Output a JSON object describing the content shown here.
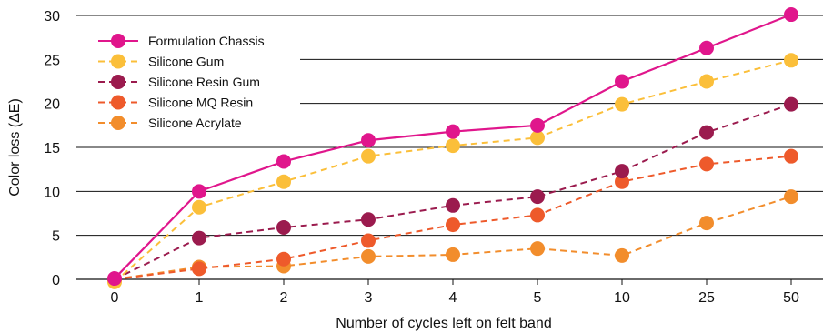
{
  "chart_data": {
    "type": "line",
    "title": "",
    "xlabel": "Number of cycles left on felt band",
    "ylabel": "Color loss (ΔE)",
    "categories": [
      "0",
      "1",
      "2",
      "3",
      "4",
      "5",
      "10",
      "25",
      "50"
    ],
    "ylim": [
      0,
      30
    ],
    "yticks": [
      0,
      5,
      10,
      15,
      20,
      25,
      30
    ],
    "grid": "horizontal",
    "legend_position": "top-left",
    "series": [
      {
        "name": "Formulation Chassis",
        "color": "#e0168c",
        "dash": "solid",
        "values": [
          0.1,
          10.0,
          13.4,
          15.8,
          16.8,
          17.5,
          22.5,
          26.3,
          30.1
        ]
      },
      {
        "name": "Silicone Gum",
        "color": "#fbbf3a",
        "dash": "dashed",
        "values": [
          -0.3,
          8.2,
          11.1,
          14.0,
          15.2,
          16.1,
          19.9,
          22.5,
          24.9
        ]
      },
      {
        "name": "Silicone Resin Gum",
        "color": "#9b1b4e",
        "dash": "dashed",
        "values": [
          0.0,
          4.7,
          5.9,
          6.8,
          8.4,
          9.4,
          12.3,
          16.7,
          19.9
        ]
      },
      {
        "name": "Silicone MQ Resin",
        "color": "#ee5a2b",
        "dash": "dashed",
        "values": [
          0.0,
          1.2,
          2.3,
          4.4,
          6.2,
          7.3,
          11.1,
          13.1,
          14.0
        ]
      },
      {
        "name": "Silicone Acrylate",
        "color": "#f28d2c",
        "dash": "dashed",
        "values": [
          0.0,
          1.4,
          1.5,
          2.6,
          2.8,
          3.5,
          2.7,
          6.4,
          9.4
        ]
      }
    ]
  }
}
